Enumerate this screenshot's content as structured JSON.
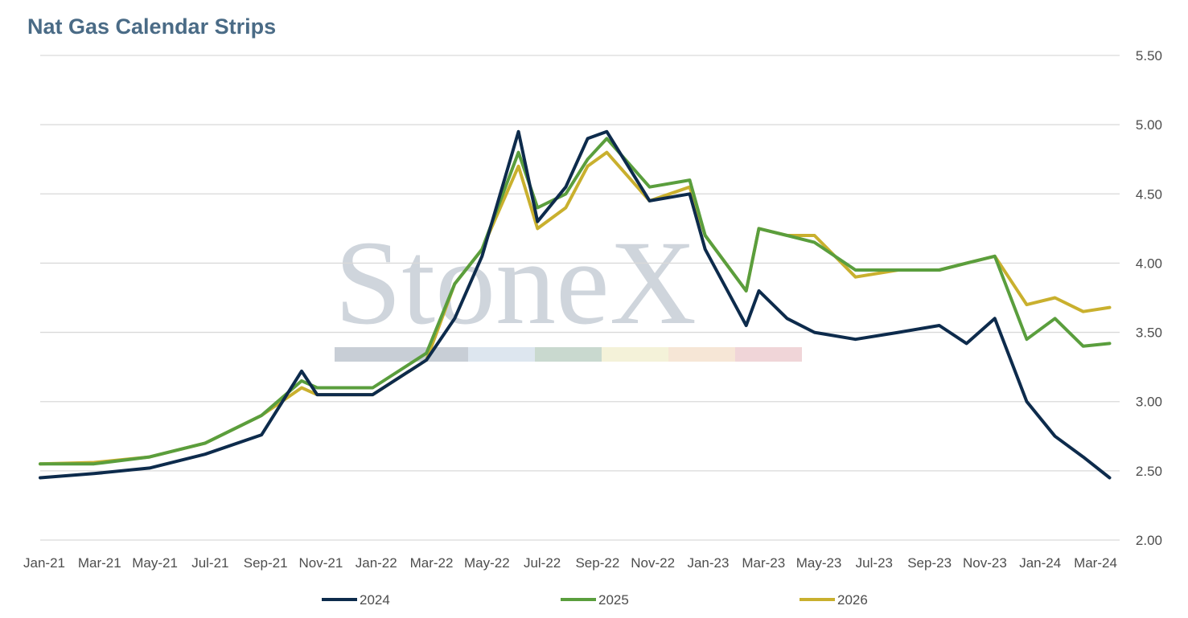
{
  "chart_data": {
    "type": "line",
    "title": "Nat Gas Calendar Strips",
    "xlabel": "",
    "ylabel": "",
    "ylim": [
      2.0,
      5.5
    ],
    "yticks": [
      "2.00",
      "2.50",
      "3.00",
      "3.50",
      "4.00",
      "4.50",
      "5.00",
      "5.50"
    ],
    "x_tick_labels": [
      "Jan-21",
      "Mar-21",
      "May-21",
      "Jul-21",
      "Sep-21",
      "Nov-21",
      "Jan-22",
      "Mar-22",
      "May-22",
      "Jul-22",
      "Sep-22",
      "Nov-22",
      "Jan-23",
      "Mar-23",
      "May-23",
      "Jul-23",
      "Sep-23",
      "Nov-23",
      "Jan-24",
      "Mar-24"
    ],
    "y_axis_position": "right",
    "grid": "horizontal",
    "legend_position": "bottom",
    "watermark": "StoneX",
    "x": [
      "2021-01-01",
      "2021-03-01",
      "2021-05-01",
      "2021-07-01",
      "2021-09-01",
      "2021-10-15",
      "2021-11-01",
      "2022-01-01",
      "2022-03-01",
      "2022-04-01",
      "2022-05-01",
      "2022-06-10",
      "2022-07-01",
      "2022-08-01",
      "2022-08-25",
      "2022-09-15",
      "2022-11-01",
      "2022-12-15",
      "2023-01-01",
      "2023-02-15",
      "2023-03-01",
      "2023-04-01",
      "2023-05-01",
      "2023-06-15",
      "2023-08-01",
      "2023-09-15",
      "2023-10-15",
      "2023-11-15",
      "2023-12-20",
      "2024-01-20",
      "2024-02-20",
      "2024-03-20"
    ],
    "series": [
      {
        "name": "2024",
        "color": "#0d2b4c",
        "values": [
          2.45,
          2.48,
          2.52,
          2.62,
          2.76,
          3.22,
          3.05,
          3.05,
          3.3,
          3.6,
          4.05,
          4.95,
          4.3,
          4.55,
          4.9,
          4.95,
          4.45,
          4.5,
          4.1,
          3.55,
          3.8,
          3.6,
          3.5,
          3.45,
          3.5,
          3.55,
          3.42,
          3.6,
          3.0,
          2.75,
          2.6,
          2.45
        ]
      },
      {
        "name": "2025",
        "color": "#5a9e3d",
        "values": [
          2.55,
          2.55,
          2.6,
          2.7,
          2.9,
          3.15,
          3.1,
          3.1,
          3.35,
          3.85,
          4.1,
          4.8,
          4.4,
          4.5,
          4.75,
          4.9,
          4.55,
          4.6,
          4.2,
          3.8,
          4.25,
          4.2,
          4.15,
          3.95,
          3.95,
          3.95,
          4.0,
          4.05,
          3.45,
          3.6,
          3.4,
          3.42
        ]
      },
      {
        "name": "2026",
        "color": "#c9b02e",
        "values": [
          2.55,
          2.56,
          2.6,
          2.7,
          2.9,
          3.1,
          3.05,
          3.05,
          3.3,
          3.85,
          4.1,
          4.7,
          4.25,
          4.4,
          4.7,
          4.8,
          4.45,
          4.55,
          4.2,
          3.8,
          4.25,
          4.2,
          4.2,
          3.9,
          3.95,
          3.95,
          4.0,
          4.05,
          3.7,
          3.75,
          3.65,
          3.68
        ]
      }
    ]
  }
}
